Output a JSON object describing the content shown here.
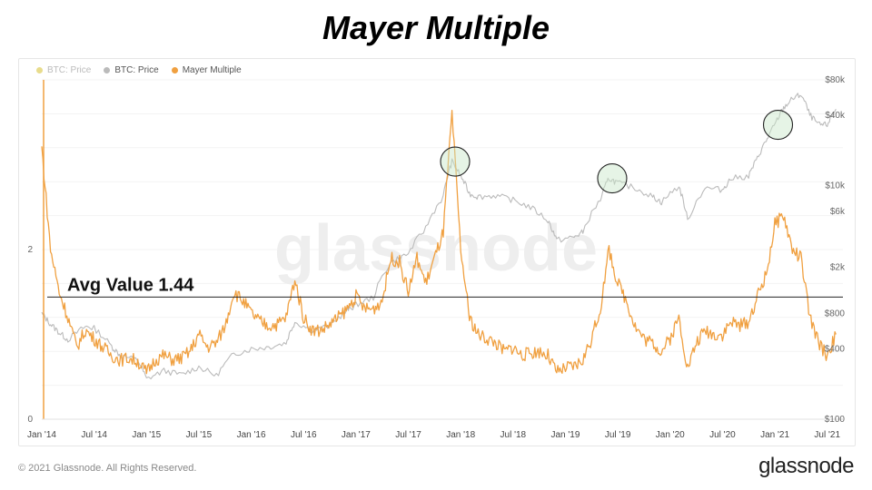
{
  "title": "Mayer Multiple",
  "legend": [
    {
      "label": "BTC: Price",
      "color": "#e8dc8c",
      "muted": true
    },
    {
      "label": "BTC: Price",
      "color": "#bbbbbb",
      "muted": false
    },
    {
      "label": "Mayer Multiple",
      "color": "#f0a040",
      "muted": false
    }
  ],
  "watermark": "glassnode",
  "footer": {
    "copyright": "© 2021 Glassnode. All Rights Reserved.",
    "logo": "glassnode"
  },
  "chart_data": {
    "type": "line",
    "x_ticks": [
      "Jan '14",
      "Jul '14",
      "Jan '15",
      "Jul '15",
      "Jan '16",
      "Jul '16",
      "Jan '17",
      "Jul '17",
      "Jan '18",
      "Jul '18",
      "Jan '19",
      "Jul '19",
      "Jan '20",
      "Jul '20",
      "Jan '21",
      "Jul '21"
    ],
    "y_left_ticks": [
      "0",
      "2"
    ],
    "y_left_range": [
      0,
      4
    ],
    "y_right_ticks": [
      "$100",
      "$400",
      "$800",
      "$2k",
      "$6k",
      "$10k",
      "$40k",
      "$80k"
    ],
    "y_right_scale": "log",
    "y_right_range": [
      100,
      80000
    ],
    "average_line": {
      "value": 1.44,
      "label": "Avg Value 1.44"
    },
    "highlight_circles": [
      "Dec 2017",
      "Jun 2019",
      "Jan 2021"
    ],
    "series": [
      {
        "name": "BTC: Price",
        "color": "#bbbbbb",
        "axis": "right",
        "points": [
          [
            "2014-01",
            800
          ],
          [
            "2014-02",
            650
          ],
          [
            "2014-03",
            550
          ],
          [
            "2014-04",
            480
          ],
          [
            "2014-06",
            620
          ],
          [
            "2014-07",
            600
          ],
          [
            "2014-09",
            420
          ],
          [
            "2014-10",
            350
          ],
          [
            "2014-12",
            320
          ],
          [
            "2015-01",
            220
          ],
          [
            "2015-03",
            260
          ],
          [
            "2015-05",
            240
          ],
          [
            "2015-07",
            280
          ],
          [
            "2015-09",
            235
          ],
          [
            "2015-11",
            360
          ],
          [
            "2016-01",
            400
          ],
          [
            "2016-03",
            415
          ],
          [
            "2016-05",
            450
          ],
          [
            "2016-06",
            680
          ],
          [
            "2016-08",
            575
          ],
          [
            "2016-10",
            630
          ],
          [
            "2016-12",
            850
          ],
          [
            "2017-01",
            950
          ],
          [
            "2017-03",
            1100
          ],
          [
            "2017-05",
            2200
          ],
          [
            "2017-07",
            2600
          ],
          [
            "2017-09",
            4300
          ],
          [
            "2017-11",
            8000
          ],
          [
            "2017-12",
            16000
          ],
          [
            "2018-01",
            12000
          ],
          [
            "2018-02",
            8500
          ],
          [
            "2018-03",
            8000
          ],
          [
            "2018-05",
            8200
          ],
          [
            "2018-07",
            7500
          ],
          [
            "2018-09",
            6500
          ],
          [
            "2018-11",
            5000
          ],
          [
            "2018-12",
            3400
          ],
          [
            "2019-02",
            3600
          ],
          [
            "2019-03",
            4000
          ],
          [
            "2019-05",
            7500
          ],
          [
            "2019-06",
            11500
          ],
          [
            "2019-07",
            10500
          ],
          [
            "2019-09",
            9500
          ],
          [
            "2019-11",
            8000
          ],
          [
            "2019-12",
            7200
          ],
          [
            "2020-02",
            9800
          ],
          [
            "2020-03",
            5000
          ],
          [
            "2020-05",
            9500
          ],
          [
            "2020-07",
            9200
          ],
          [
            "2020-08",
            11500
          ],
          [
            "2020-10",
            12000
          ],
          [
            "2020-11",
            17000
          ],
          [
            "2020-12",
            24000
          ],
          [
            "2021-01",
            33000
          ],
          [
            "2021-02",
            46000
          ],
          [
            "2021-03",
            55000
          ],
          [
            "2021-04",
            60000
          ],
          [
            "2021-05",
            40000
          ],
          [
            "2021-06",
            33000
          ],
          [
            "2021-07",
            33000
          ],
          [
            "2021-08",
            45000
          ]
        ]
      },
      {
        "name": "Mayer Multiple",
        "color": "#f0a040",
        "axis": "left",
        "points": [
          [
            "2014-01",
            3.2
          ],
          [
            "2014-02",
            2.0
          ],
          [
            "2014-03",
            1.5
          ],
          [
            "2014-04",
            1.2
          ],
          [
            "2014-05",
            0.85
          ],
          [
            "2014-06",
            1.05
          ],
          [
            "2014-07",
            0.95
          ],
          [
            "2014-08",
            0.85
          ],
          [
            "2014-09",
            0.75
          ],
          [
            "2014-10",
            0.7
          ],
          [
            "2014-11",
            0.72
          ],
          [
            "2014-12",
            0.68
          ],
          [
            "2015-01",
            0.55
          ],
          [
            "2015-02",
            0.7
          ],
          [
            "2015-03",
            0.75
          ],
          [
            "2015-04",
            0.7
          ],
          [
            "2015-05",
            0.72
          ],
          [
            "2015-06",
            0.8
          ],
          [
            "2015-07",
            1.0
          ],
          [
            "2015-08",
            0.85
          ],
          [
            "2015-09",
            0.9
          ],
          [
            "2015-10",
            1.1
          ],
          [
            "2015-11",
            1.5
          ],
          [
            "2015-12",
            1.4
          ],
          [
            "2016-01",
            1.25
          ],
          [
            "2016-02",
            1.15
          ],
          [
            "2016-03",
            1.1
          ],
          [
            "2016-04",
            1.12
          ],
          [
            "2016-05",
            1.2
          ],
          [
            "2016-06",
            1.65
          ],
          [
            "2016-07",
            1.2
          ],
          [
            "2016-08",
            1.05
          ],
          [
            "2016-09",
            1.05
          ],
          [
            "2016-10",
            1.12
          ],
          [
            "2016-11",
            1.2
          ],
          [
            "2016-12",
            1.3
          ],
          [
            "2017-01",
            1.45
          ],
          [
            "2017-02",
            1.3
          ],
          [
            "2017-03",
            1.3
          ],
          [
            "2017-04",
            1.4
          ],
          [
            "2017-05",
            1.9
          ],
          [
            "2017-06",
            1.85
          ],
          [
            "2017-07",
            1.5
          ],
          [
            "2017-08",
            1.9
          ],
          [
            "2017-09",
            1.6
          ],
          [
            "2017-10",
            1.9
          ],
          [
            "2017-11",
            2.2
          ],
          [
            "2017-12",
            3.6
          ],
          [
            "2018-01",
            2.0
          ],
          [
            "2018-02",
            1.2
          ],
          [
            "2018-03",
            1.0
          ],
          [
            "2018-04",
            0.95
          ],
          [
            "2018-05",
            0.9
          ],
          [
            "2018-06",
            0.8
          ],
          [
            "2018-07",
            0.85
          ],
          [
            "2018-08",
            0.75
          ],
          [
            "2018-09",
            0.78
          ],
          [
            "2018-10",
            0.8
          ],
          [
            "2018-11",
            0.75
          ],
          [
            "2018-12",
            0.55
          ],
          [
            "2019-01",
            0.6
          ],
          [
            "2019-02",
            0.62
          ],
          [
            "2019-03",
            0.7
          ],
          [
            "2019-04",
            0.95
          ],
          [
            "2019-05",
            1.3
          ],
          [
            "2019-06",
            2.0
          ],
          [
            "2019-07",
            1.6
          ],
          [
            "2019-08",
            1.4
          ],
          [
            "2019-09",
            1.1
          ],
          [
            "2019-10",
            0.95
          ],
          [
            "2019-11",
            0.9
          ],
          [
            "2019-12",
            0.8
          ],
          [
            "2020-01",
            0.95
          ],
          [
            "2020-02",
            1.2
          ],
          [
            "2020-03",
            0.6
          ],
          [
            "2020-04",
            0.9
          ],
          [
            "2020-05",
            1.05
          ],
          [
            "2020-06",
            1.0
          ],
          [
            "2020-07",
            1.0
          ],
          [
            "2020-08",
            1.15
          ],
          [
            "2020-09",
            1.1
          ],
          [
            "2020-10",
            1.15
          ],
          [
            "2020-11",
            1.45
          ],
          [
            "2020-12",
            1.7
          ],
          [
            "2021-01",
            2.3
          ],
          [
            "2021-02",
            2.4
          ],
          [
            "2021-03",
            2.0
          ],
          [
            "2021-04",
            1.9
          ],
          [
            "2021-05",
            1.2
          ],
          [
            "2021-06",
            0.9
          ],
          [
            "2021-07",
            0.75
          ],
          [
            "2021-08",
            1.0
          ]
        ]
      }
    ]
  }
}
